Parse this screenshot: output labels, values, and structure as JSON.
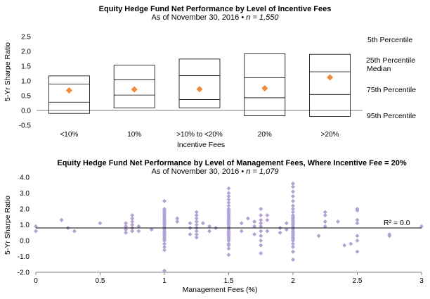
{
  "colors": {
    "marker": "#F08A3A",
    "scatter": "#B3A2D4",
    "axis": "#7F7F7F",
    "box": "#000000"
  },
  "chart_data": [
    {
      "type": "box",
      "title": "Equity Hedge Fund Net Performance by Level of Incentive Fees",
      "subtitle_prefix": "As of November 30, 2016 •",
      "subtitle_n": "n = 1,550",
      "xlabel": "Incentive Fees",
      "ylabel": "5-Yr Sharpe Ratio",
      "ylim": [
        -0.5,
        2.5
      ],
      "yticks": [
        "-0.5",
        "0.0",
        "0.5",
        "1.0",
        "1.5",
        "2.0",
        "2.5"
      ],
      "yticks_values": [
        -0.5,
        0,
        0.5,
        1.0,
        1.5,
        2.0,
        2.5
      ],
      "categories": [
        "<10%",
        "10%",
        ">10% to <20%",
        "20%",
        ">20%"
      ],
      "series": [
        {
          "name": "5th Percentile",
          "values": [
            1.17,
            1.53,
            1.74,
            1.92,
            1.9
          ]
        },
        {
          "name": "25th Percentile",
          "values": [
            0.89,
            1.04,
            1.18,
            1.11,
            1.31
          ]
        },
        {
          "name": "Median",
          "values": [
            0.68,
            0.71,
            0.72,
            0.75,
            1.12
          ]
        },
        {
          "name": "75th Percentile",
          "values": [
            0.28,
            0.52,
            0.37,
            0.43,
            0.54
          ]
        },
        {
          "name": "95th Percentile",
          "values": [
            -0.1,
            0.09,
            0.09,
            -0.18,
            -0.2
          ]
        }
      ],
      "legend": [
        "5th Percentile",
        "25th Percentile",
        "Median",
        "75th Percentile",
        "95th Percentile"
      ]
    },
    {
      "type": "scatter",
      "title": "Equity Hedge Fund Net Performance by Level of Management Fees, Where Incentive Fee = 20%",
      "subtitle_prefix": "As of November 30, 2016 •",
      "subtitle_n": "n = 1,079",
      "xlabel": "Management Fees (%)",
      "ylabel": "5-Yr Sharpe Ratio",
      "xlim": [
        0,
        3
      ],
      "ylim": [
        -2.0,
        4.0
      ],
      "xticks": [
        "0",
        "0.5",
        "1",
        "1.5",
        "2",
        "2.5",
        "3"
      ],
      "xticks_values": [
        0,
        0.5,
        1,
        1.5,
        2,
        2.5,
        3
      ],
      "yticks": [
        "-2.0",
        "-1.0",
        "0.0",
        "1.0",
        "2.0",
        "3.0",
        "4.0"
      ],
      "yticks_values": [
        -2,
        -1,
        0,
        1,
        2,
        3,
        4
      ],
      "trendline_y": 0.8,
      "r2_label": "R² = 0.0",
      "series": [
        {
          "x": 0,
          "y": [
            0.6,
            0.9
          ]
        },
        {
          "x": 0.2,
          "y": [
            1.3
          ]
        },
        {
          "x": 0.25,
          "y": [
            0.8
          ]
        },
        {
          "x": 0.3,
          "y": [
            0.6
          ]
        },
        {
          "x": 0.5,
          "y": [
            1.1
          ]
        },
        {
          "x": 0.7,
          "y": [
            0.5,
            0.7,
            0.9,
            1.1
          ]
        },
        {
          "x": 0.75,
          "y": [
            0.6,
            0.8,
            1.0,
            1.2,
            1.4,
            1.6
          ]
        },
        {
          "x": 0.8,
          "y": [
            0.6,
            0.9
          ]
        },
        {
          "x": 0.9,
          "y": [
            0.7
          ]
        },
        {
          "x": 1.0,
          "y": [
            -1.9,
            -0.6,
            -0.4,
            -0.2,
            0.0,
            0.1,
            0.2,
            0.3,
            0.4,
            0.5,
            0.6,
            0.7,
            0.8,
            0.9,
            1.0,
            1.1,
            1.2,
            1.3,
            1.4,
            1.5,
            1.6,
            1.7,
            1.8,
            1.9,
            2.0,
            2.5
          ]
        },
        {
          "x": 1.1,
          "y": [
            1.2,
            1.4
          ]
        },
        {
          "x": 1.2,
          "y": [
            0.4,
            0.8,
            1.1
          ]
        },
        {
          "x": 1.25,
          "y": [
            0.2,
            0.4,
            0.6,
            0.8,
            1.0,
            1.2,
            1.4,
            1.6,
            1.8
          ]
        },
        {
          "x": 1.3,
          "y": [
            1.1
          ]
        },
        {
          "x": 1.35,
          "y": [
            0.6,
            0.9
          ]
        },
        {
          "x": 1.4,
          "y": [
            0.8
          ]
        },
        {
          "x": 1.5,
          "y": [
            -0.9,
            -0.5,
            -0.3,
            -0.2,
            0.0,
            0.1,
            0.2,
            0.3,
            0.4,
            0.5,
            0.6,
            0.7,
            0.8,
            0.9,
            1.0,
            1.1,
            1.2,
            1.3,
            1.4,
            1.5,
            1.6,
            1.7,
            1.8,
            1.9,
            2.0,
            2.2,
            2.4,
            2.6,
            2.8,
            3.0,
            3.3
          ]
        },
        {
          "x": 1.6,
          "y": [
            0.6,
            1.1
          ]
        },
        {
          "x": 1.65,
          "y": [
            1.4
          ]
        },
        {
          "x": 1.7,
          "y": [
            0.4,
            0.9,
            1.2
          ]
        },
        {
          "x": 1.75,
          "y": [
            -0.8,
            -0.3,
            0.0,
            0.3,
            0.6,
            0.9,
            1.1,
            1.3,
            1.6,
            2.0
          ]
        },
        {
          "x": 1.8,
          "y": [
            0.6,
            1.3,
            1.6
          ]
        },
        {
          "x": 1.9,
          "y": [
            0.5,
            0.8
          ]
        },
        {
          "x": 1.95,
          "y": [
            0.7,
            1.1
          ]
        },
        {
          "x": 2.0,
          "y": [
            -1.2,
            -0.7,
            -0.4,
            -0.2,
            0.0,
            0.1,
            0.2,
            0.3,
            0.4,
            0.5,
            0.6,
            0.7,
            0.8,
            0.9,
            1.0,
            1.1,
            1.2,
            1.3,
            1.4,
            1.5,
            1.6,
            1.8,
            2.0,
            2.2,
            2.5,
            2.8,
            3.1,
            3.4,
            3.6
          ]
        },
        {
          "x": 2.2,
          "y": [
            0.3
          ]
        },
        {
          "x": 2.25,
          "y": [
            0.9,
            1.2,
            1.6,
            1.8
          ]
        },
        {
          "x": 2.35,
          "y": [
            1.2
          ]
        },
        {
          "x": 2.4,
          "y": [
            -0.3
          ]
        },
        {
          "x": 2.45,
          "y": [
            -0.2
          ]
        },
        {
          "x": 2.5,
          "y": [
            -0.7,
            0.0,
            0.3,
            1.1,
            1.3,
            1.9,
            2.0
          ]
        },
        {
          "x": 2.75,
          "y": [
            0.3,
            0.4
          ]
        },
        {
          "x": 3.0,
          "y": [
            0.9
          ]
        }
      ]
    }
  ]
}
